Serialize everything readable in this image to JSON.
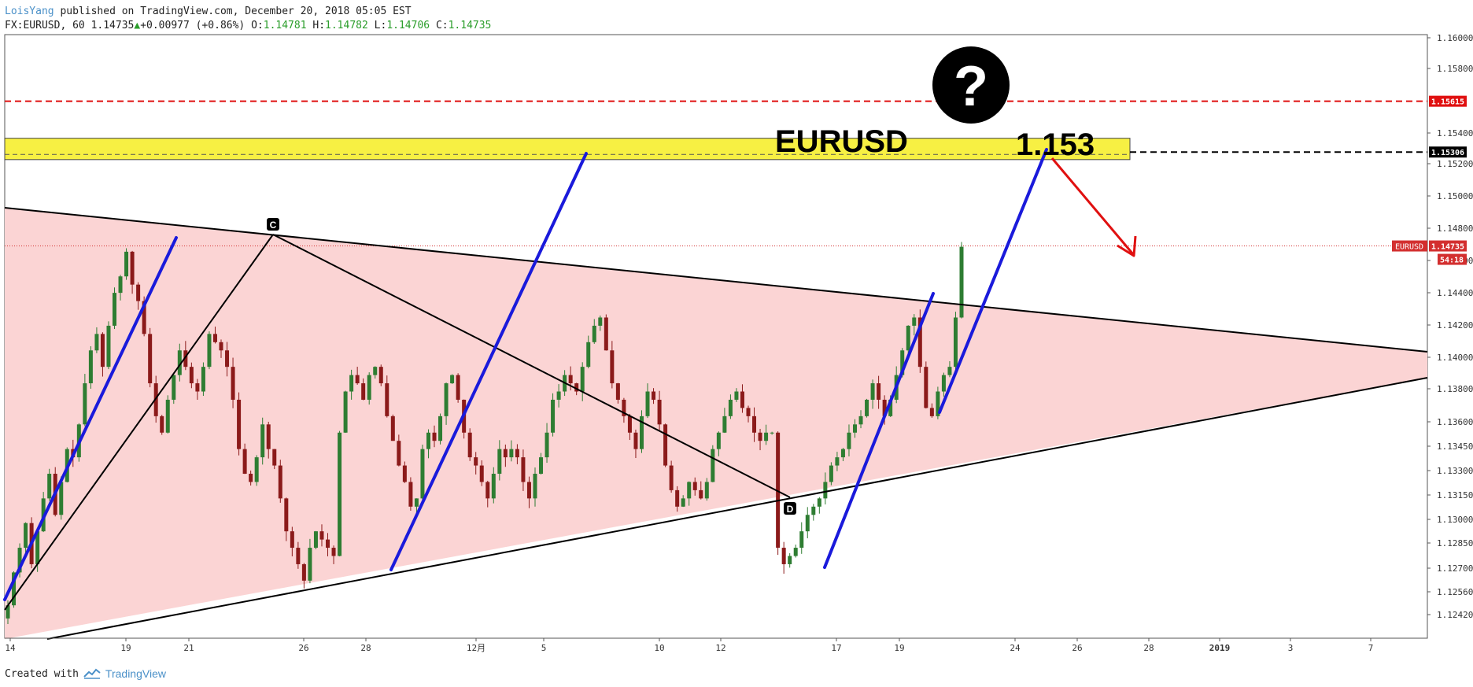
{
  "header": {
    "author": "LoisYang",
    "published": " published on TradingView.com, December 20, 2018 05:05 EST",
    "symbol": "FX:EURUSD, 60",
    "last": "1.14735",
    "change": "+0.00977 (+0.86%)",
    "o_label": "O:",
    "o": "1.14781",
    "h_label": "H:",
    "h": "1.14782",
    "l_label": "L:",
    "l": "1.14706",
    "c_label": "C:",
    "c": "1.14735"
  },
  "footer": {
    "created_with": "Created with",
    "brand": "TradingView"
  },
  "colors": {
    "triangle_fill": "#fbd4d4",
    "zone_fill": "#f7f043",
    "trend_blue": "#1a1adb",
    "arrow_red": "#e01010",
    "resistance_red": "#e01010",
    "candle_up": "#2e7d32",
    "candle_down": "#8b1a1a"
  },
  "chart_data": {
    "type": "candlestick",
    "symbol": "EURUSD",
    "interval": "60",
    "price_axis": [
      "1.16000",
      "1.15800",
      "1.15400",
      "1.15200",
      "1.15000",
      "1.14800",
      "1.14600",
      "1.14400",
      "1.14200",
      "1.14000",
      "1.13800",
      "1.13600",
      "1.13450",
      "1.13300",
      "1.13150",
      "1.13000",
      "1.12850",
      "1.12700",
      "1.12560",
      "1.12420"
    ],
    "time_axis": [
      "14",
      "19",
      "21",
      "26",
      "28",
      "12月",
      "5",
      "10",
      "12",
      "17",
      "19",
      "24",
      "26",
      "28",
      "2019",
      "3",
      "7"
    ],
    "ylim": [
      1.1235,
      1.1602
    ],
    "labels": {
      "price_badge_symbol": "EURUSD",
      "price_badge_value": "1.14735",
      "countdown": "54:18",
      "resistance_value": "1.15615",
      "zone_value": "1.15306",
      "zone_title": "EURUSD",
      "zone_target": "1.153",
      "point_c": "C",
      "point_d": "D",
      "question": "?"
    },
    "levels": {
      "last_price": 1.14735,
      "resistance": 1.15615,
      "zone_line": 1.15306,
      "zone_top": 1.1539,
      "zone_bottom": 1.1526
    },
    "closes": [
      1.1255,
      1.1275,
      1.129,
      1.1305,
      1.128,
      1.13,
      1.132,
      1.1335,
      1.131,
      1.133,
      1.135,
      1.1345,
      1.1365,
      1.139,
      1.141,
      1.142,
      1.14,
      1.1425,
      1.1445,
      1.1455,
      1.147,
      1.145,
      1.144,
      1.142,
      1.139,
      1.137,
      1.136,
      1.138,
      1.1395,
      1.141,
      1.14,
      1.139,
      1.1385,
      1.14,
      1.142,
      1.1415,
      1.141,
      1.14,
      1.138,
      1.135,
      1.1335,
      1.133,
      1.1345,
      1.1365,
      1.135,
      1.134,
      1.132,
      1.13,
      1.129,
      1.128,
      1.127,
      1.129,
      1.13,
      1.1295,
      1.129,
      1.1285,
      1.136,
      1.1385,
      1.1395,
      1.139,
      1.138,
      1.1395,
      1.14,
      1.139,
      1.137,
      1.1355,
      1.134,
      1.133,
      1.1315,
      1.132,
      1.135,
      1.136,
      1.1355,
      1.137,
      1.139,
      1.1395,
      1.138,
      1.136,
      1.1345,
      1.134,
      1.133,
      1.132,
      1.1335,
      1.135,
      1.1345,
      1.135,
      1.1345,
      1.133,
      1.132,
      1.1335,
      1.1345,
      1.136,
      1.138,
      1.1385,
      1.1395,
      1.139,
      1.1385,
      1.14,
      1.1415,
      1.1425,
      1.143,
      1.141,
      1.139,
      1.138,
      1.137,
      1.136,
      1.135,
      1.137,
      1.1385,
      1.138,
      1.1365,
      1.134,
      1.1325,
      1.1315,
      1.132,
      1.133,
      1.1325,
      1.132,
      1.133,
      1.135,
      1.136,
      1.137,
      1.138,
      1.1385,
      1.1375,
      1.137,
      1.136,
      1.1355,
      1.136,
      1.136,
      1.129,
      1.128,
      1.1285,
      1.129,
      1.13,
      1.131,
      1.1315,
      1.132,
      1.133,
      1.134,
      1.1345,
      1.135,
      1.136,
      1.1365,
      1.137,
      1.138,
      1.139,
      1.138,
      1.137,
      1.138,
      1.1395,
      1.141,
      1.1425,
      1.143,
      1.14,
      1.1375,
      1.137,
      1.1385,
      1.1395,
      1.14,
      1.143,
      1.1473
    ]
  }
}
